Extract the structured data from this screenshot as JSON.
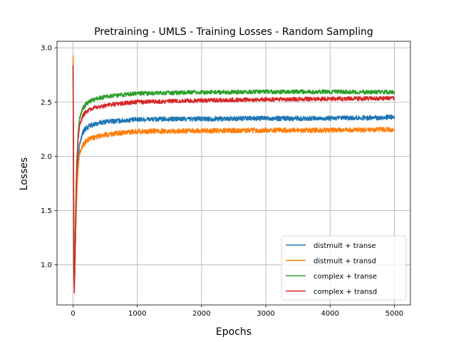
{
  "chart_data": {
    "type": "line",
    "title": "Pretraining - UMLS - Training Losses - Random Sampling",
    "xlabel": "Epochs",
    "ylabel": "Losses",
    "xlim": [
      -250,
      5250
    ],
    "ylim": [
      0.63,
      3.06
    ],
    "xticks": [
      0,
      1000,
      2000,
      3000,
      4000,
      5000
    ],
    "yticks": [
      1.0,
      1.5,
      2.0,
      2.5,
      3.0
    ],
    "xtick_labels": [
      "0",
      "1000",
      "2000",
      "3000",
      "4000",
      "5000"
    ],
    "ytick_labels": [
      "1.0",
      "1.5",
      "2.0",
      "2.5",
      "3.0"
    ],
    "grid": true,
    "legend_position": "bottom-right",
    "series": [
      {
        "name": "distmult + transe",
        "color": "#1f77b4",
        "noise": 0.014,
        "points": [
          [
            0,
            2.87
          ],
          [
            5,
            2.2
          ],
          [
            15,
            0.98
          ],
          [
            25,
            0.86
          ],
          [
            40,
            1.28
          ],
          [
            60,
            1.72
          ],
          [
            80,
            1.98
          ],
          [
            100,
            2.1
          ],
          [
            150,
            2.22
          ],
          [
            200,
            2.26
          ],
          [
            300,
            2.29
          ],
          [
            500,
            2.32
          ],
          [
            800,
            2.33
          ],
          [
            1000,
            2.34
          ],
          [
            2000,
            2.345
          ],
          [
            3000,
            2.35
          ],
          [
            4000,
            2.35
          ],
          [
            5000,
            2.36
          ]
        ]
      },
      {
        "name": "distmult + transd",
        "color": "#ff7f0e",
        "noise": 0.014,
        "points": [
          [
            0,
            2.93
          ],
          [
            5,
            2.3
          ],
          [
            15,
            1.0
          ],
          [
            25,
            0.88
          ],
          [
            40,
            1.3
          ],
          [
            60,
            1.68
          ],
          [
            80,
            1.9
          ],
          [
            100,
            2.02
          ],
          [
            150,
            2.1
          ],
          [
            200,
            2.14
          ],
          [
            300,
            2.17
          ],
          [
            500,
            2.2
          ],
          [
            800,
            2.22
          ],
          [
            1000,
            2.23
          ],
          [
            2000,
            2.235
          ],
          [
            3000,
            2.24
          ],
          [
            4000,
            2.24
          ],
          [
            5000,
            2.245
          ]
        ]
      },
      {
        "name": "complex + transe",
        "color": "#2ca02c",
        "noise": 0.012,
        "points": [
          [
            0,
            2.82
          ],
          [
            5,
            2.1
          ],
          [
            12,
            1.0
          ],
          [
            20,
            0.76
          ],
          [
            35,
            1.35
          ],
          [
            55,
            1.9
          ],
          [
            80,
            2.22
          ],
          [
            100,
            2.35
          ],
          [
            150,
            2.44
          ],
          [
            200,
            2.48
          ],
          [
            300,
            2.52
          ],
          [
            500,
            2.55
          ],
          [
            800,
            2.57
          ],
          [
            1000,
            2.58
          ],
          [
            2000,
            2.59
          ],
          [
            3000,
            2.595
          ],
          [
            4000,
            2.595
          ],
          [
            5000,
            2.59
          ]
        ]
      },
      {
        "name": "complex + transd",
        "color": "#d62728",
        "noise": 0.012,
        "points": [
          [
            0,
            2.84
          ],
          [
            5,
            2.0
          ],
          [
            12,
            0.95
          ],
          [
            20,
            0.74
          ],
          [
            35,
            1.3
          ],
          [
            55,
            1.85
          ],
          [
            80,
            2.16
          ],
          [
            100,
            2.28
          ],
          [
            150,
            2.37
          ],
          [
            200,
            2.41
          ],
          [
            300,
            2.44
          ],
          [
            500,
            2.47
          ],
          [
            800,
            2.49
          ],
          [
            1000,
            2.5
          ],
          [
            2000,
            2.515
          ],
          [
            3000,
            2.525
          ],
          [
            4000,
            2.53
          ],
          [
            5000,
            2.535
          ]
        ]
      }
    ]
  }
}
